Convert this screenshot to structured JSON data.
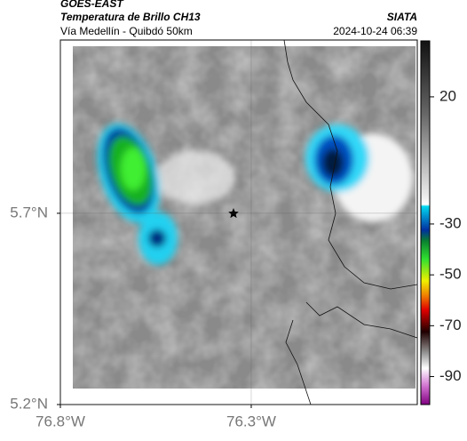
{
  "header": {
    "satellite": "GOES-EAST",
    "product": "Temperatura de Brillo CH13",
    "location": "Vía Medellín - Quibdó 50km",
    "source": "SIATA",
    "datetime": "2024-10-24 06:39"
  },
  "map": {
    "xlim": [
      -76.8,
      -75.865
    ],
    "ylim": [
      5.2,
      6.153
    ],
    "xticks": [
      {
        "value": -76.8,
        "label": "76.8°W"
      },
      {
        "value": -76.3,
        "label": "76.3°W"
      }
    ],
    "yticks": [
      {
        "value": 5.7,
        "label": "5.7°N"
      },
      {
        "value": 5.2,
        "label": "5.2°N"
      }
    ]
  },
  "colorbar": {
    "lim": [
      -101,
      42
    ],
    "ticks": [
      20,
      -30,
      -50,
      -70,
      -90
    ]
  }
}
